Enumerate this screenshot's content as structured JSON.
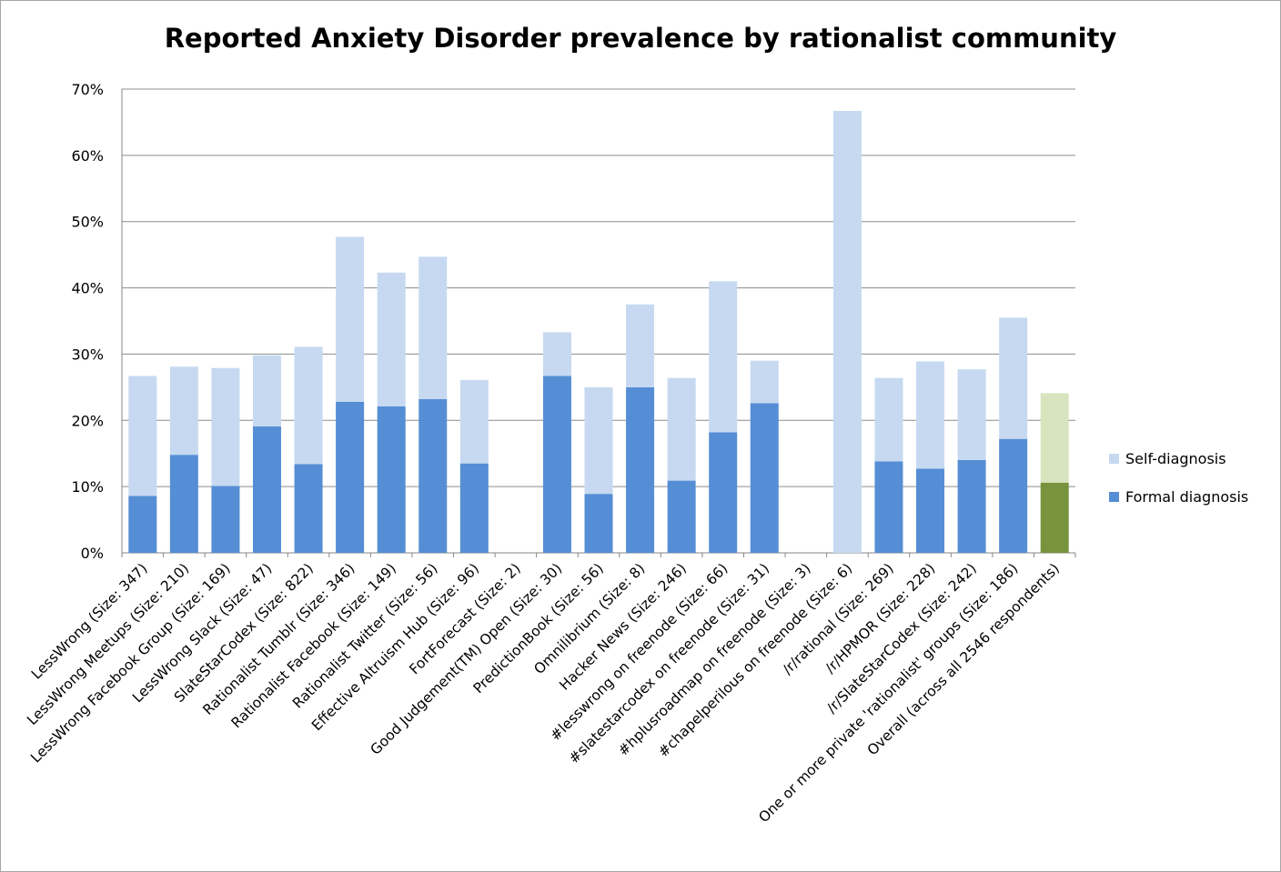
{
  "chart_data": {
    "type": "bar",
    "stacked": true,
    "title": "Reported Anxiety Disorder prevalence by rationalist community",
    "xlabel": "",
    "ylabel": "",
    "ylim": [
      0,
      70
    ],
    "y_ticks": [
      "0%",
      "10%",
      "20%",
      "30%",
      "40%",
      "50%",
      "60%",
      "70%"
    ],
    "grid": true,
    "legend_position": "right",
    "categories": [
      "LessWrong (Size: 347)",
      "LessWrong Meetups (Size: 210)",
      "LessWrong Facebook Group (Size: 169)",
      "LessWrong Slack (Size: 47)",
      "SlateStarCodex (Size: 822)",
      "Rationalist Tumblr (Size: 346)",
      "Rationalist Facebook (Size: 149)",
      "Rationalist Twitter (Size: 56)",
      "Effective Altruism Hub (Size: 96)",
      "FortForecast (Size: 2)",
      "Good Judgement(TM) Open  (Size: 30)",
      "PredictionBook (Size: 56)",
      "Omnilibrium (Size: 8)",
      "Hacker News (Size: 246)",
      "#lesswrong on freenode  (Size: 66)",
      "#slatestarcodex on freenode  (Size: 31)",
      "#hplusroadmap on freenode  (Size: 3)",
      "#chapelperilous on freenode (Size: 6)",
      "/r/rational (Size: 269)",
      "/r/HPMOR (Size: 228)",
      "/r/SlateStarCodex (Size: 242)",
      "One or more private 'rationalist' groups  (Size: 186)",
      "Overall (across all 2546 respondents)"
    ],
    "series": [
      {
        "name": "Formal diagnosis",
        "color": "#558ed5",
        "values": [
          8.6,
          14.8,
          10.1,
          19.1,
          13.4,
          22.8,
          22.1,
          23.2,
          13.5,
          0,
          26.7,
          8.9,
          25.0,
          10.9,
          18.2,
          22.6,
          0,
          0,
          13.8,
          12.7,
          14.0,
          17.2,
          10.6
        ]
      },
      {
        "name": "Self-diagnosis",
        "color": "#c6d9f1",
        "values": [
          18.1,
          13.3,
          17.8,
          10.7,
          17.7,
          24.9,
          20.2,
          21.5,
          12.6,
          0,
          6.6,
          16.1,
          12.5,
          15.5,
          22.8,
          6.4,
          0,
          66.7,
          12.6,
          16.2,
          13.7,
          18.3,
          13.5
        ]
      }
    ],
    "highlight": {
      "category_index": 22,
      "formal_color": "#77933c",
      "self_color": "#d7e4bd"
    }
  },
  "legend": {
    "self_label": "Self-diagnosis",
    "formal_label": "Formal diagnosis"
  }
}
